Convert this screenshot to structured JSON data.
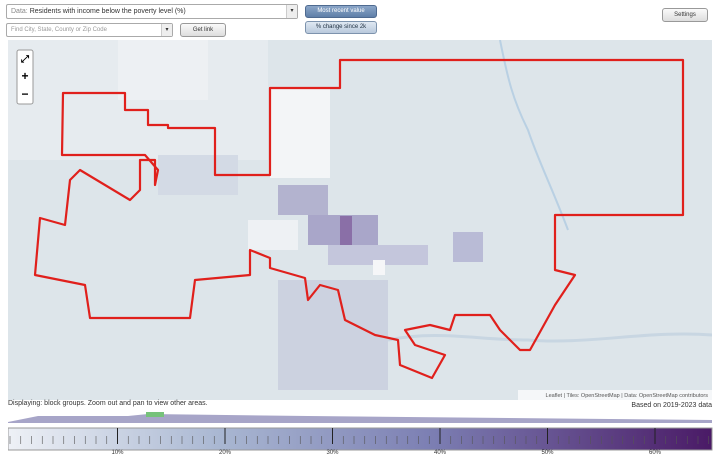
{
  "toolbar": {
    "data_label": "Data:",
    "data_select": "Residents with income below the poverty level (%)",
    "search_placeholder": "Find City, State, County or Zip Code",
    "get_link": "Get link",
    "most_recent": "Most recent value",
    "change_since": "% change since 2k",
    "settings": "Settings"
  },
  "map": {
    "attribution": "Leaflet | Tiles: OpenStreetMap | Data: OpenStreetMap contributors"
  },
  "footer": {
    "displaying": "Displaying: block groups. Zoom out and pan to view other areas.",
    "based_on": "Based on 2019-2023 data"
  },
  "legend": {
    "ticks": [
      "10%",
      "20%",
      "30%",
      "40%",
      "50%",
      "60%"
    ]
  }
}
